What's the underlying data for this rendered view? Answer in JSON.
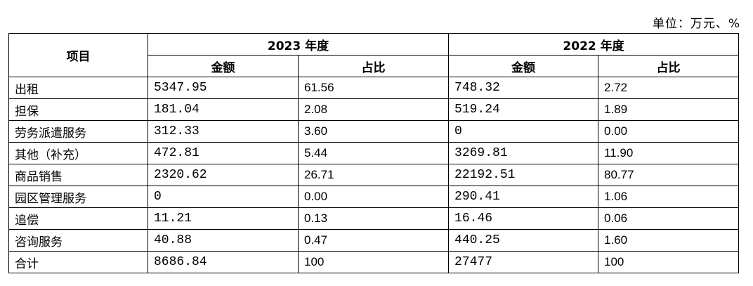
{
  "unit": "单位：万元、%",
  "table": {
    "header": {
      "item": "项目",
      "groups": [
        "2023 年度",
        "2022 年度"
      ],
      "subcolumns": [
        "金额",
        "占比",
        "金额",
        "占比"
      ]
    },
    "rows": [
      [
        "出租",
        "5347.95",
        "61.56",
        "748.32",
        "2.72"
      ],
      [
        "担保",
        "181.04",
        "2.08",
        "519.24",
        "1.89"
      ],
      [
        "劳务派遣服务",
        "312.33",
        "3.60",
        "0",
        "0.00"
      ],
      [
        "其他（补充）",
        "472.81",
        "5.44",
        "3269.81",
        "11.90"
      ],
      [
        "商品销售",
        "2320.62",
        "26.71",
        "22192.51",
        "80.77"
      ],
      [
        "园区管理服务",
        "0",
        "0.00",
        "290.41",
        "1.06"
      ],
      [
        "追偿",
        "11.21",
        "0.13",
        "16.46",
        "0.06"
      ],
      [
        "咨询服务",
        "40.88",
        "0.47",
        "440.25",
        "1.60"
      ],
      [
        "合计",
        "8686.84",
        "100",
        "27477",
        "100"
      ]
    ]
  }
}
